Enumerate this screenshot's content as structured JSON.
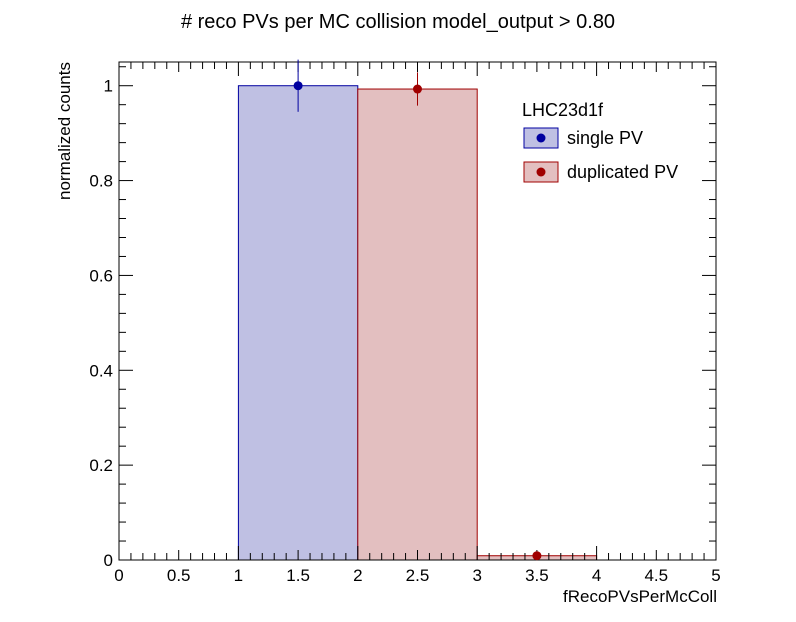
{
  "chart_data": {
    "type": "bar",
    "title": "# reco PVs per MC collision  model_output > 0.80",
    "xlabel": "fRecoPVsPerMcColl",
    "ylabel": "normalized counts",
    "xlim": [
      0,
      5
    ],
    "ylim": [
      0,
      1.05
    ],
    "x_ticks": [
      "0",
      "0.5",
      "1",
      "1.5",
      "2",
      "2.5",
      "3",
      "3.5",
      "4",
      "4.5",
      "5"
    ],
    "y_ticks": [
      "0",
      "0.2",
      "0.4",
      "0.6",
      "0.8",
      "1"
    ],
    "legend": {
      "header": "LHC23d1f",
      "position": "top-right",
      "entries": [
        "single PV",
        "duplicated PV"
      ]
    },
    "series": [
      {
        "name": "single PV",
        "color": "#0000a0",
        "fill": "#bfc0e3",
        "bins": [
          {
            "x_low": 1,
            "x_high": 2,
            "x_center": 1.5,
            "value": 1.0,
            "error": 0.055
          }
        ]
      },
      {
        "name": "duplicated PV",
        "color": "#a00000",
        "fill": "#e3bfc0",
        "bins": [
          {
            "x_low": 2,
            "x_high": 3,
            "x_center": 2.5,
            "value": 0.993,
            "error": 0.035
          },
          {
            "x_low": 3,
            "x_high": 4,
            "x_center": 3.5,
            "value": 0.009,
            "error": 0.004
          }
        ]
      }
    ]
  }
}
